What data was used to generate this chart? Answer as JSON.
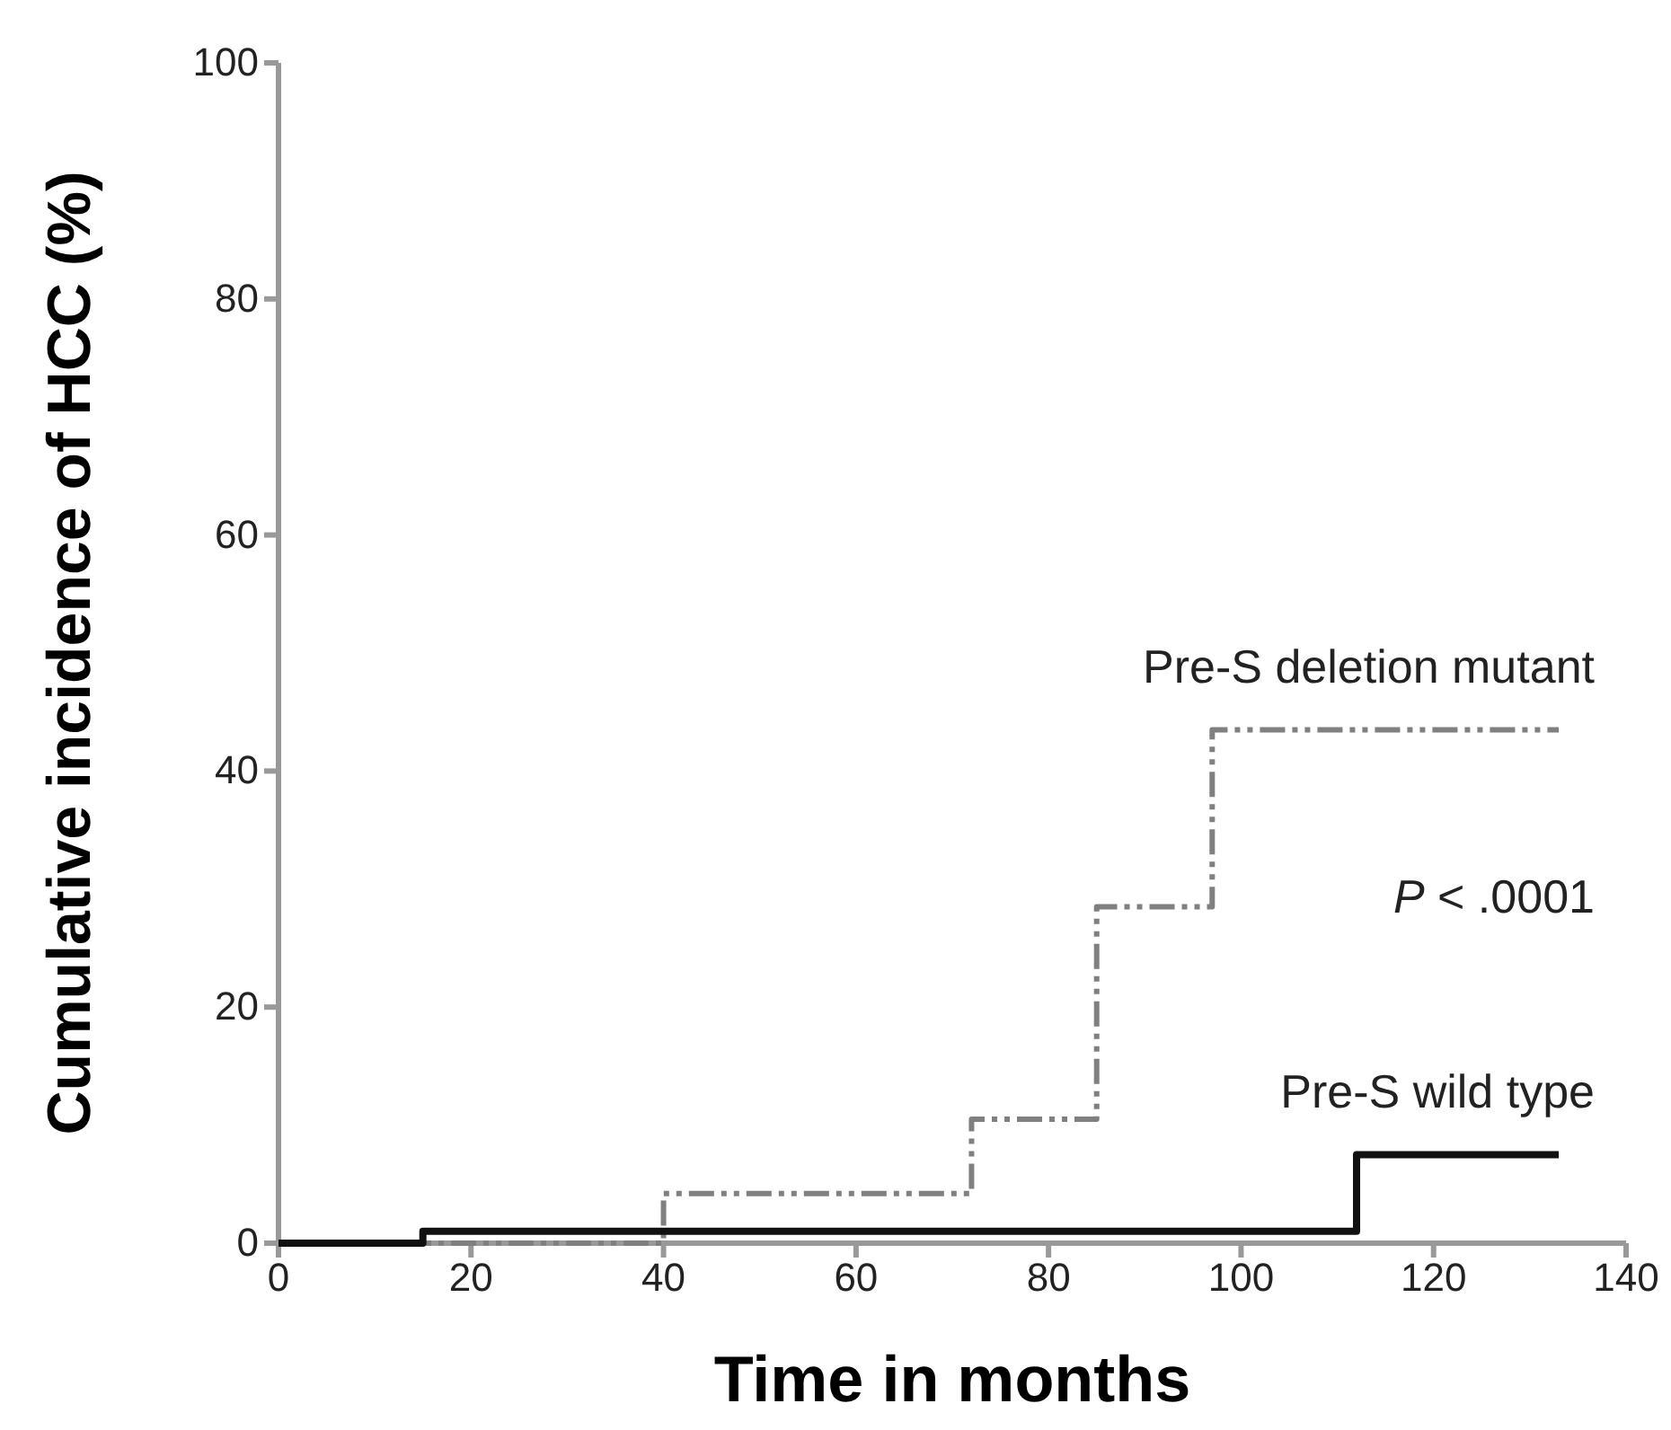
{
  "chart_data": {
    "type": "step",
    "xlabel": "Time in months",
    "ylabel": "Cumulative incidence of HCC (%)",
    "xlim": [
      0,
      140
    ],
    "xticks": [
      0,
      20,
      40,
      60,
      80,
      100,
      120,
      140
    ],
    "ylim": [
      0,
      100
    ],
    "yticks": [
      0,
      20,
      40,
      60,
      80,
      100
    ],
    "grid": false,
    "series": [
      {
        "name": "Pre-S deletion mutant",
        "color": "#808080",
        "line_style": "dashed",
        "x": [
          0,
          40,
          72,
          85,
          97,
          133
        ],
        "values": [
          0,
          4.2,
          10.5,
          28.5,
          43.5,
          43.5
        ]
      },
      {
        "name": "Pre-S wild type",
        "color": "#111111",
        "line_style": "solid",
        "x": [
          0,
          15,
          112,
          133
        ],
        "values": [
          0,
          1,
          7.5,
          7.5
        ]
      }
    ],
    "annotations": [
      "P < .0001"
    ]
  }
}
